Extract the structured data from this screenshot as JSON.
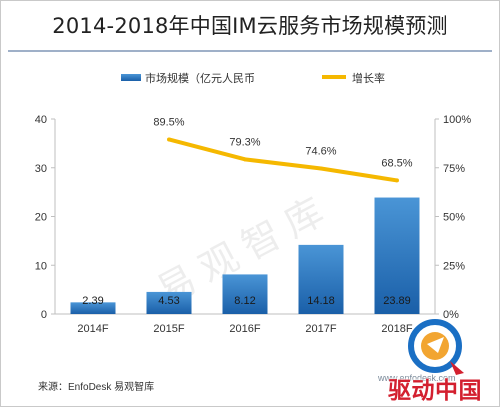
{
  "title": "2014-2018年中国IM云服务市场规模预测",
  "source": "来源：EnfoDesk 易观智库",
  "watermark": "易观智库",
  "badge": {
    "text": "驱动中国",
    "url": "www.enfodesk.com"
  },
  "colors": {
    "bar_top": "#4a95d6",
    "bar_bottom": "#1a5fa8",
    "line": "#f5b800",
    "axis": "#bfbfbf"
  },
  "chart_data": {
    "type": "bar",
    "categories": [
      "2014F",
      "2015F",
      "2016F",
      "2017F",
      "2018F"
    ],
    "series": [
      {
        "name": "市场规模（亿元人民币",
        "type": "bar",
        "axis": "left",
        "values": [
          2.39,
          4.53,
          8.12,
          14.18,
          23.89
        ],
        "labels": [
          "2.39",
          "4.53",
          "8.12",
          "14.18",
          "23.89"
        ]
      },
      {
        "name": "增长率",
        "type": "line",
        "axis": "right",
        "values": [
          null,
          89.5,
          79.3,
          74.6,
          68.5
        ],
        "labels": [
          "",
          "89.5%",
          "79.3%",
          "74.6%",
          "68.5%"
        ]
      }
    ],
    "y_left": {
      "min": 0,
      "max": 40,
      "ticks": [
        0,
        10,
        20,
        30,
        40
      ],
      "labels": [
        "0",
        "10",
        "20",
        "30",
        "40"
      ]
    },
    "y_right": {
      "min": 0,
      "max": 100,
      "ticks": [
        0,
        25,
        50,
        75,
        100
      ],
      "labels": [
        "0%",
        "25%",
        "50%",
        "75%",
        "100%"
      ]
    },
    "legend_position": "top"
  }
}
